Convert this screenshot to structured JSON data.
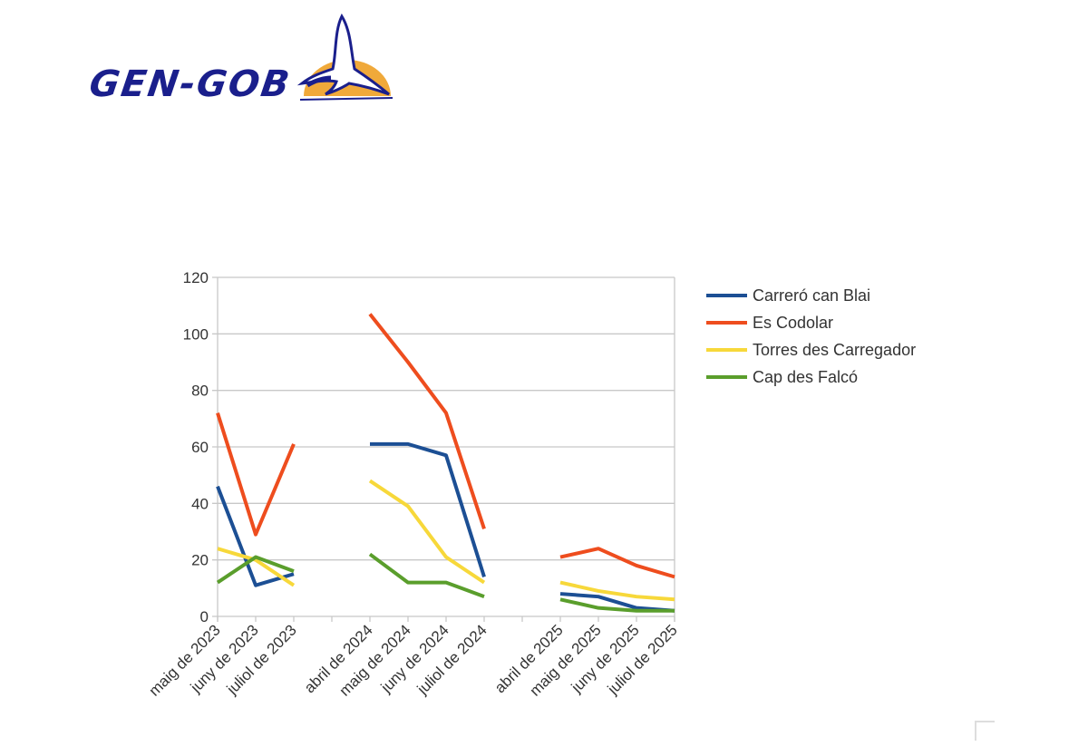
{
  "logo": {
    "text": "GEN-GOB"
  },
  "chart_data": {
    "type": "line",
    "title": "",
    "xlabel": "",
    "ylabel": "",
    "ylim": [
      0,
      120
    ],
    "yticks": [
      0,
      20,
      40,
      60,
      80,
      100,
      120
    ],
    "grid": true,
    "legend_position": "right",
    "categories": [
      "maig de 2023",
      "juny de 2023",
      "juliol de 2023",
      "",
      "abril de 2024",
      "maig de 2024",
      "juny de 2024",
      "juliol de 2024",
      "",
      "abril de 2025",
      "maig de 2025",
      "juny de 2025",
      "juliol de 2025"
    ],
    "series": [
      {
        "name": "Carreró can Blai",
        "color": "#1c4f94",
        "values": [
          46,
          11,
          15,
          null,
          61,
          61,
          57,
          14,
          null,
          8,
          7,
          3,
          2
        ]
      },
      {
        "name": "Es Codolar",
        "color": "#ee4d1e",
        "values": [
          72,
          29,
          61,
          null,
          107,
          90,
          72,
          31,
          null,
          21,
          24,
          18,
          14
        ]
      },
      {
        "name": "Torres des Carregador",
        "color": "#f7d83a",
        "values": [
          24,
          20,
          11,
          null,
          48,
          39,
          21,
          12,
          null,
          12,
          9,
          7,
          6
        ]
      },
      {
        "name": "Cap des Falcó",
        "color": "#5a9e2c",
        "values": [
          12,
          21,
          16,
          null,
          22,
          12,
          12,
          7,
          null,
          6,
          3,
          2,
          2
        ]
      }
    ]
  }
}
